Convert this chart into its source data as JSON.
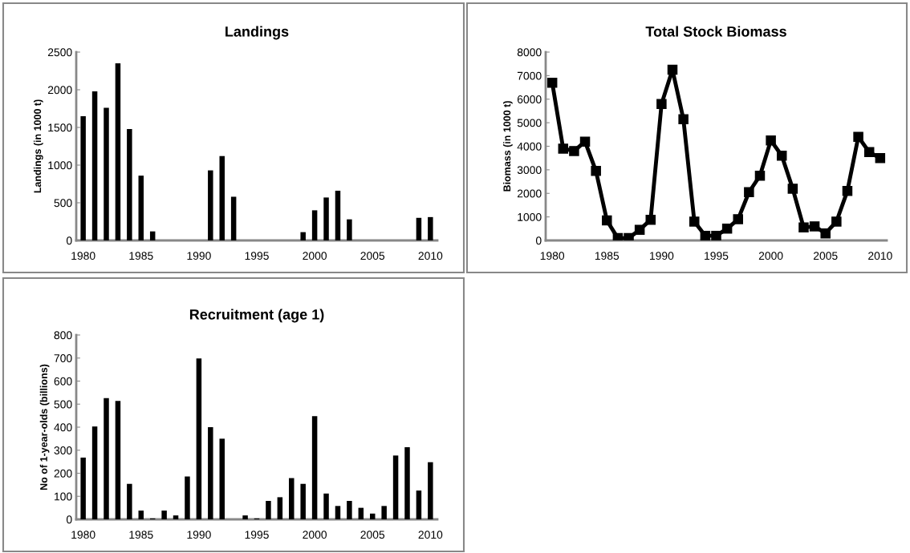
{
  "chart_data": [
    {
      "type": "bar",
      "title": "Landings",
      "ylabel": "Landings (in 1000 t)",
      "categories": [
        "1980",
        null,
        null,
        null,
        null,
        "1985",
        null,
        null,
        null,
        null,
        "1990",
        null,
        null,
        null,
        null,
        "1995",
        null,
        null,
        null,
        null,
        "2000",
        null,
        null,
        null,
        null,
        "2005",
        null,
        null,
        null,
        null,
        "2010"
      ],
      "values": [
        1650,
        1980,
        1760,
        2350,
        1480,
        860,
        120,
        0,
        0,
        0,
        0,
        930,
        1120,
        580,
        0,
        0,
        0,
        0,
        0,
        110,
        400,
        570,
        660,
        280,
        0,
        0,
        0,
        0,
        0,
        300,
        310
      ],
      "color": "#000000",
      "ylim": [
        0,
        2500
      ],
      "yticks": [
        0,
        500,
        1000,
        1500,
        2000,
        2500
      ],
      "grid": false,
      "legend": false
    },
    {
      "type": "line",
      "title": "Total Stock Biomass",
      "ylabel": "Biomass (in 1000 t)",
      "categories": [
        "1980",
        null,
        null,
        null,
        null,
        "1985",
        null,
        null,
        null,
        null,
        "1990",
        null,
        null,
        null,
        null,
        "1995",
        null,
        null,
        null,
        null,
        "2000",
        null,
        null,
        null,
        null,
        "2005",
        null,
        null,
        null,
        null,
        "2010"
      ],
      "values": [
        6700,
        3900,
        3800,
        4200,
        2950,
        850,
        100,
        100,
        450,
        880,
        5800,
        7250,
        5150,
        800,
        200,
        200,
        500,
        900,
        2050,
        2750,
        4250,
        3600,
        2200,
        550,
        600,
        300,
        800,
        2100,
        4400,
        3750,
        3500
      ],
      "color": "#000000",
      "marker": "square",
      "line_style": "solid",
      "ylim": [
        0,
        8000
      ],
      "yticks": [
        0,
        1000,
        2000,
        3000,
        4000,
        5000,
        6000,
        7000,
        8000
      ],
      "grid": false,
      "legend": false
    },
    {
      "type": "bar",
      "title": "Recruitment (age 1)",
      "ylabel": "No of 1-year-olds (billions)",
      "categories": [
        "1980",
        null,
        null,
        null,
        null,
        "1985",
        null,
        null,
        null,
        null,
        "1990",
        null,
        null,
        null,
        null,
        "1995",
        null,
        null,
        null,
        null,
        "2000",
        null,
        null,
        null,
        null,
        "2005",
        null,
        null,
        null,
        null,
        "2010"
      ],
      "values": [
        268,
        403,
        526,
        514,
        154,
        38,
        4,
        38,
        17,
        186,
        698,
        400,
        350,
        0,
        17,
        4,
        80,
        96,
        179,
        154,
        448,
        112,
        58,
        80,
        50,
        25,
        58,
        277,
        313,
        125,
        248
      ],
      "color": "#000000",
      "ylim": [
        0,
        800
      ],
      "yticks": [
        0,
        100,
        200,
        300,
        400,
        500,
        600,
        700,
        800
      ],
      "grid": false,
      "legend": false
    }
  ]
}
